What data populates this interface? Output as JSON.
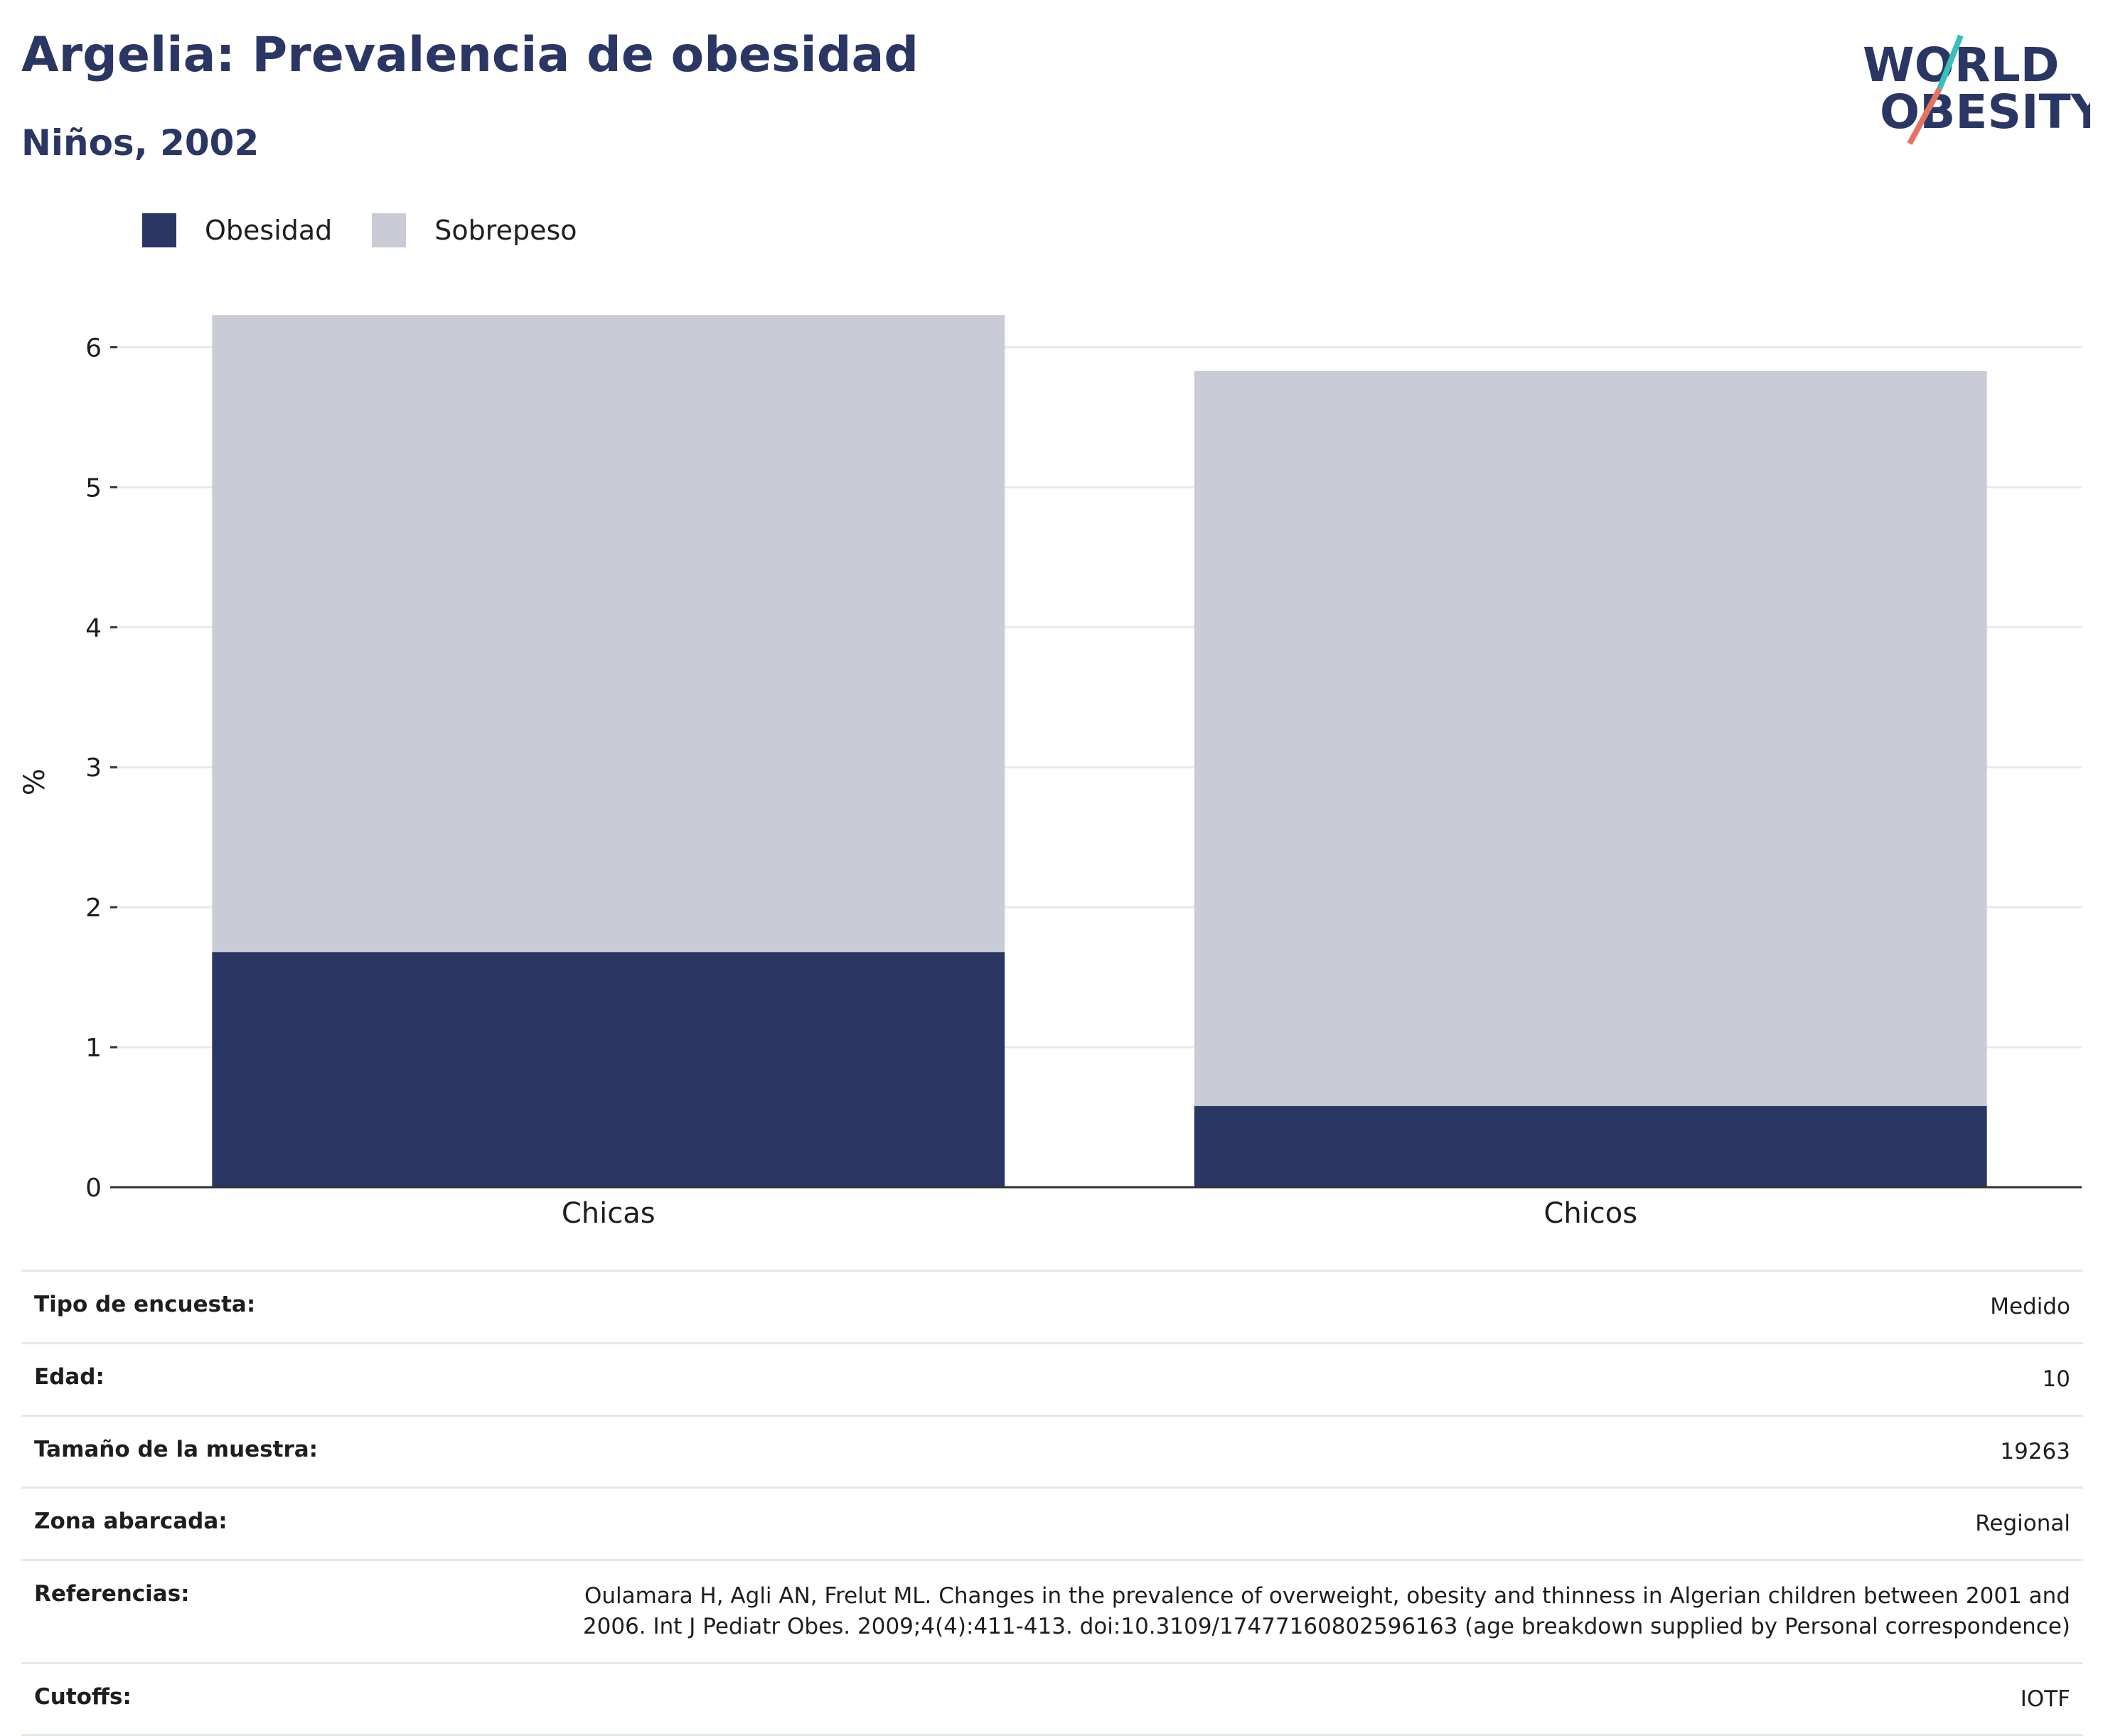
{
  "header": {
    "title": "Argelia: Prevalencia de obesidad",
    "subtitle": "Niños, 2002"
  },
  "logo": {
    "line1": "WORLD",
    "line2": "OBESITY",
    "colors": {
      "text": "#2a3664",
      "slash_top": "#3bbfb8",
      "slash_bottom": "#e8705f"
    }
  },
  "colors": {
    "obesidad": "#2a3664",
    "sobrepeso": "#c9cbd7",
    "grid": "#e8e9ee",
    "axis": "#333333"
  },
  "chart_data": {
    "type": "bar",
    "stacked": true,
    "title": "Argelia: Prevalencia de obesidad",
    "subtitle": "Niños, 2002",
    "categories": [
      "Chicas",
      "Chicos"
    ],
    "series": [
      {
        "name": "Obesidad",
        "values": [
          1.68,
          0.58
        ]
      },
      {
        "name": "Sobrepeso",
        "values": [
          4.55,
          5.25
        ]
      }
    ],
    "xlabel": "",
    "ylabel": "%",
    "ylim": [
      0,
      6.5
    ],
    "yticks": [
      0,
      1,
      2,
      3,
      4,
      5,
      6
    ],
    "grid": true,
    "legend_position": "top-left"
  },
  "info_table": [
    {
      "label": "Tipo de encuesta:",
      "value": "Medido"
    },
    {
      "label": "Edad:",
      "value": "10"
    },
    {
      "label": "Tamaño de la muestra:",
      "value": "19263"
    },
    {
      "label": "Zona abarcada:",
      "value": "Regional"
    },
    {
      "label": "Referencias:",
      "value": "Oulamara H, Agli AN, Frelut ML. Changes in the prevalence of overweight, obesity and thinness in Algerian children between 2001 and 2006. Int J Pediatr Obes. 2009;4(4):411-413. doi:10.3109/17477160802596163 (age breakdown supplied by Personal correspondence)"
    },
    {
      "label": "Cutoffs:",
      "value": "IOTF"
    }
  ]
}
